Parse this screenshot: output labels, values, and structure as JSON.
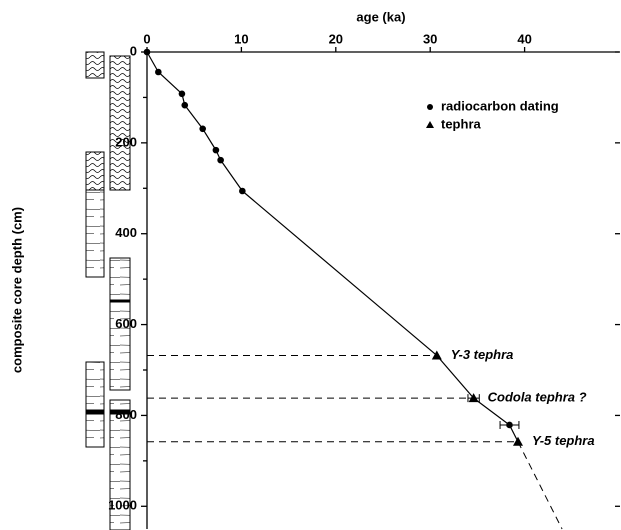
{
  "chart_data": {
    "type": "line",
    "x_label": "age (ka)",
    "y_label": "composite core depth (cm)",
    "xlim": [
      0,
      50
    ],
    "ylim": [
      0,
      1050
    ],
    "xticks": [
      0,
      10,
      20,
      30,
      40
    ],
    "yticks": [
      0,
      200,
      400,
      600,
      800,
      1000
    ],
    "y_inverted": true,
    "legend": "upper right",
    "series": [
      {
        "name": "radiocarbon dating",
        "marker": "circle",
        "color": "#000000",
        "x": [
          0,
          1.2,
          3.7,
          4.0,
          5.9,
          7.3,
          7.8,
          10.1,
          38.4
        ],
        "y": [
          0,
          44,
          92,
          117,
          169,
          216,
          238,
          306,
          821
        ],
        "xerr": [
          null,
          null,
          null,
          null,
          null,
          null,
          null,
          null,
          1.0
        ]
      },
      {
        "name": "tephra",
        "marker": "triangle",
        "color": "#000000",
        "x": [
          30.7,
          34.6,
          39.3
        ],
        "y": [
          668,
          762,
          858
        ],
        "xerr": [
          null,
          0.6,
          null
        ],
        "labels": [
          "Y-3 tephra",
          "Codola tephra ?",
          "Y-5 tephra"
        ]
      }
    ]
  }
}
